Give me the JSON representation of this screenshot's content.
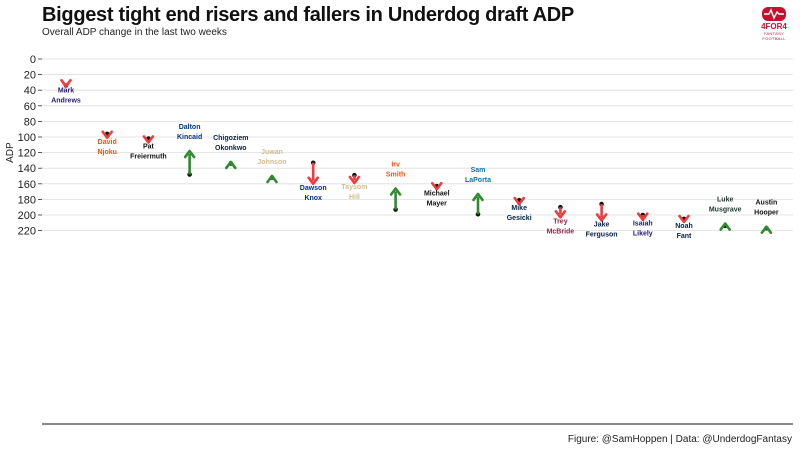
{
  "header": {
    "title": "Biggest tight end risers and fallers in Underdog draft ADP",
    "subtitle": "Overall ADP change in the last two weeks"
  },
  "logo": {
    "text": "4FOR4",
    "sub": "FANTASY FOOTBALL",
    "color": "#c8102e"
  },
  "caption": "Figure: @SamHoppen | Data: @UnderdogFantasy",
  "colors": {
    "riser": "#2e8b2e",
    "faller": "#f03c3c",
    "dot": "#111111",
    "grid": "#dddddd"
  },
  "chart_data": {
    "type": "arrow",
    "title": "Biggest tight end risers and fallers in Underdog draft ADP",
    "subtitle": "Overall ADP change in the last two weeks",
    "xlabel": "",
    "ylabel": "ADP",
    "ylim": [
      0,
      220
    ],
    "y_reversed": true,
    "y_ticks": [
      0,
      20,
      40,
      60,
      80,
      100,
      120,
      140,
      160,
      180,
      200,
      220
    ],
    "grid": true,
    "points": [
      {
        "name": [
          "Mark",
          "Andrews"
        ],
        "from": 34,
        "to": 35,
        "color": "#2b1d6b"
      },
      {
        "name": [
          "David",
          "Njoku"
        ],
        "from": 96,
        "to": 101,
        "color": "#ff4d00"
      },
      {
        "name": [
          "Pat",
          "Freiermuth"
        ],
        "from": 102,
        "to": 107,
        "color": "#111111"
      },
      {
        "name": [
          "Dalton",
          "Kincaid"
        ],
        "from": 148,
        "to": 118,
        "color": "#00338d"
      },
      {
        "name": [
          "Chigoziem",
          "Okonkwo"
        ],
        "from": 134,
        "to": 132,
        "color": "#0c2340"
      },
      {
        "name": [
          "Juwan",
          "Johnson"
        ],
        "from": 152,
        "to": 150,
        "color": "#d3bc8d"
      },
      {
        "name": [
          "Dawson",
          "Knox"
        ],
        "from": 133,
        "to": 160,
        "color": "#00338d"
      },
      {
        "name": [
          "Taysom",
          "Hill"
        ],
        "from": 149,
        "to": 159,
        "color": "#d3bc8d"
      },
      {
        "name": [
          "Irv",
          "Smith"
        ],
        "from": 193,
        "to": 166,
        "color": "#fb4f14"
      },
      {
        "name": [
          "Michael",
          "Mayer"
        ],
        "from": 163,
        "to": 167,
        "color": "#111111"
      },
      {
        "name": [
          "Sam",
          "LaPorta"
        ],
        "from": 199,
        "to": 173,
        "color": "#0076b6"
      },
      {
        "name": [
          "Mike",
          "Gesicki"
        ],
        "from": 181,
        "to": 186,
        "color": "#002244"
      },
      {
        "name": [
          "Trey",
          "McBride"
        ],
        "from": 190,
        "to": 203,
        "color": "#97233f"
      },
      {
        "name": [
          "Jake",
          "Ferguson"
        ],
        "from": 186,
        "to": 207,
        "color": "#041e42"
      },
      {
        "name": [
          "Isaiah",
          "Likely"
        ],
        "from": 200,
        "to": 206,
        "color": "#241773"
      },
      {
        "name": [
          "Noah",
          "Fant"
        ],
        "from": 205,
        "to": 209,
        "color": "#002244"
      },
      {
        "name": [
          "Luke",
          "Musgrave"
        ],
        "from": 214,
        "to": 211,
        "color": "#203731"
      },
      {
        "name": [
          "Austin",
          "Hooper"
        ],
        "from": 217,
        "to": 215,
        "color": "#111111"
      }
    ]
  }
}
